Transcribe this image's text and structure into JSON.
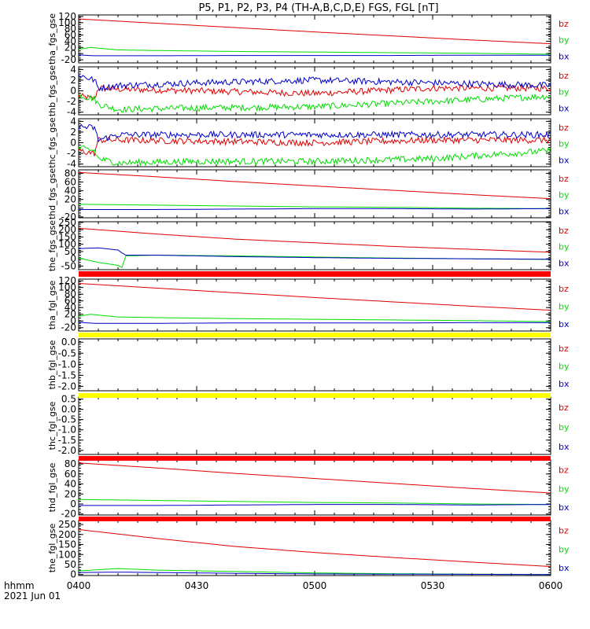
{
  "page": {
    "title": "P5, P1, P2, P3, P4 (TH-A,B,C,D,E) FGS, FGL [nT]"
  },
  "footer": {
    "time_format": "hhmm",
    "date": "2021 Jun 01"
  },
  "x_axis": {
    "range_minutes": [
      0,
      120
    ],
    "tick_minutes": [
      0,
      30,
      60,
      90,
      120
    ],
    "tick_labels": [
      "0400",
      "0430",
      "0500",
      "0530",
      "0600"
    ]
  },
  "colors": {
    "bz": "#e00000",
    "by": "#00dd00",
    "bx": "#0000c8",
    "flag_red": "#ff0000",
    "flag_yellow": "#ffff00"
  },
  "chart_data": [
    {
      "type": "line",
      "ylabel": "tha_fgs_gse",
      "ylim": [
        -30,
        125
      ],
      "ytick_values": [
        -20,
        0,
        20,
        40,
        60,
        80,
        100,
        120
      ],
      "ytick_labels": [
        "-20",
        "0",
        "20",
        "40",
        "60",
        "80",
        "100",
        "120"
      ],
      "legend": [
        "bz",
        "by",
        "bx"
      ],
      "series": [
        {
          "name": "bz",
          "x": [
            0,
            20,
            40,
            60,
            80,
            100,
            120
          ],
          "y": [
            112,
            98,
            84,
            70,
            57,
            44,
            32
          ]
        },
        {
          "name": "by",
          "x": [
            0,
            3,
            10,
            20,
            40,
            60,
            80,
            100,
            120
          ],
          "y": [
            14,
            20,
            12,
            10,
            7,
            5,
            3,
            1,
            -2
          ]
        },
        {
          "name": "bx",
          "x": [
            0,
            4,
            20,
            40,
            60,
            80,
            100,
            120
          ],
          "y": [
            -4,
            -7,
            -7,
            -6,
            -6,
            -6,
            -5,
            -5
          ]
        }
      ]
    },
    {
      "type": "line",
      "ylabel": "thb_fgs_gse",
      "ylim": [
        -4.5,
        4.5
      ],
      "ytick_values": [
        -4,
        -2,
        0,
        2,
        4
      ],
      "ytick_labels": [
        "-4",
        "-2",
        "0",
        "2",
        "4"
      ],
      "legend": [
        "bz",
        "by",
        "bx"
      ],
      "series": [
        {
          "name": "bz",
          "x": [
            0,
            4,
            5,
            10,
            30,
            60,
            90,
            120
          ],
          "y": [
            -1,
            -1.5,
            0.5,
            0.3,
            0,
            -0.5,
            0.5,
            0.5
          ]
        },
        {
          "name": "by",
          "x": [
            0,
            4,
            5,
            10,
            30,
            60,
            90,
            120
          ],
          "y": [
            -0.8,
            -1.5,
            -2.5,
            -3.5,
            -3.2,
            -3,
            -2,
            -1
          ]
        },
        {
          "name": "bx",
          "x": [
            0,
            4,
            5,
            10,
            30,
            60,
            90,
            120
          ],
          "y": [
            3,
            2,
            0.5,
            1,
            1.5,
            2,
            1.5,
            1
          ]
        }
      ]
    },
    {
      "type": "line",
      "ylabel": "thc_fgs_gse",
      "ylim": [
        -4.5,
        4.5
      ],
      "ytick_values": [
        -4,
        -2,
        0,
        2,
        4
      ],
      "ytick_labels": [
        "-4",
        "-2",
        "0",
        "2",
        "4"
      ],
      "legend": [
        "bz",
        "by",
        "bx"
      ],
      "series": [
        {
          "name": "bz",
          "x": [
            0,
            4,
            5,
            10,
            30,
            60,
            90,
            120
          ],
          "y": [
            -1.5,
            -2,
            0.5,
            0.5,
            0.3,
            0,
            0.5,
            0.5
          ]
        },
        {
          "name": "by",
          "x": [
            0,
            4,
            5,
            10,
            30,
            60,
            90,
            120
          ],
          "y": [
            -1,
            -1.5,
            -3,
            -3.8,
            -3.5,
            -3.5,
            -3,
            -1.5
          ]
        },
        {
          "name": "bx",
          "x": [
            0,
            4,
            5,
            10,
            30,
            60,
            90,
            120
          ],
          "y": [
            3,
            2.8,
            0.5,
            1.5,
            1.5,
            1.5,
            1.5,
            1.5
          ]
        }
      ]
    },
    {
      "type": "line",
      "ylabel": "thd_fgs_gse",
      "ylim": [
        -22,
        88
      ],
      "ytick_values": [
        -20,
        0,
        20,
        40,
        60,
        80
      ],
      "ytick_labels": [
        "-20",
        "0",
        "20",
        "40",
        "60",
        "80"
      ],
      "legend": [
        "bz",
        "by",
        "bx"
      ],
      "series": [
        {
          "name": "bz",
          "x": [
            0,
            20,
            40,
            60,
            80,
            100,
            120
          ],
          "y": [
            82,
            72,
            61,
            51,
            41,
            31,
            22
          ]
        },
        {
          "name": "by",
          "x": [
            0,
            20,
            40,
            60,
            80,
            100,
            120
          ],
          "y": [
            9,
            7,
            5,
            3,
            2,
            0,
            -1
          ]
        },
        {
          "name": "bx",
          "x": [
            0,
            20,
            40,
            60,
            80,
            100,
            120
          ],
          "y": [
            -3,
            -3,
            -2,
            -1,
            -1,
            -2,
            -1
          ]
        }
      ]
    },
    {
      "type": "line",
      "ylabel": "the_fgs_gse",
      "ylim": [
        -75,
        255
      ],
      "ytick_values": [
        -50,
        0,
        50,
        100,
        150,
        200,
        250
      ],
      "ytick_labels": [
        "-50",
        "0",
        "50",
        "100",
        "150",
        "200",
        "250"
      ],
      "legend": [
        "bz",
        "by",
        "bx"
      ],
      "series": [
        {
          "name": "bz",
          "x": [
            0,
            20,
            40,
            60,
            80,
            100,
            120
          ],
          "y": [
            210,
            170,
            135,
            110,
            85,
            65,
            45
          ]
        },
        {
          "name": "by",
          "x": [
            0,
            5,
            10,
            11,
            12,
            20,
            40,
            60,
            80,
            100,
            120
          ],
          "y": [
            5,
            -25,
            -45,
            -60,
            20,
            25,
            20,
            12,
            5,
            0,
            -5
          ]
        },
        {
          "name": "bx",
          "x": [
            0,
            5,
            10,
            11,
            12,
            20,
            40,
            60,
            80,
            100,
            120
          ],
          "y": [
            70,
            75,
            60,
            40,
            25,
            25,
            15,
            8,
            3,
            0,
            -3
          ]
        }
      ]
    },
    {
      "type": "line",
      "ylabel": "tha_fgl_gse",
      "ylim": [
        -30,
        125
      ],
      "ytick_values": [
        -20,
        0,
        20,
        40,
        60,
        80,
        100,
        120
      ],
      "ytick_labels": [
        "-20",
        "0",
        "20",
        "40",
        "60",
        "80",
        "100",
        "120"
      ],
      "legend": [
        "bz",
        "by",
        "bx"
      ],
      "series": [
        {
          "name": "bz",
          "x": [
            0,
            20,
            40,
            60,
            80,
            100,
            120
          ],
          "y": [
            112,
            98,
            84,
            70,
            57,
            44,
            32
          ]
        },
        {
          "name": "by",
          "x": [
            0,
            3,
            10,
            20,
            40,
            60,
            80,
            100,
            120
          ],
          "y": [
            14,
            20,
            12,
            10,
            7,
            5,
            3,
            1,
            -2
          ]
        },
        {
          "name": "bx",
          "x": [
            0,
            4,
            20,
            40,
            60,
            80,
            100,
            120
          ],
          "y": [
            -4,
            -7,
            -7,
            -6,
            -6,
            -6,
            -5,
            -5
          ]
        }
      ]
    },
    {
      "type": "line",
      "ylabel": "thb_fgl_gse",
      "ylim": [
        -2.2,
        0.15
      ],
      "ytick_values": [
        -2.0,
        -1.5,
        -1.0,
        -0.5,
        0.0
      ],
      "ytick_labels": [
        "-2.0",
        "-1.5",
        "-1.0",
        "-0.5",
        "0.0"
      ],
      "legend": [
        "bz",
        "by",
        "bx"
      ],
      "series": []
    },
    {
      "type": "line",
      "ylabel": "thc_fgl_gse",
      "ylim": [
        -2.2,
        0.6
      ],
      "ytick_values": [
        -2.0,
        -1.5,
        -1.0,
        -0.5,
        0.0,
        0.5
      ],
      "ytick_labels": [
        "-2.0",
        "-1.5",
        "-1.0",
        "-0.5",
        "0.0",
        "0.5"
      ],
      "legend": [
        "bz",
        "by",
        "bx"
      ],
      "series": []
    },
    {
      "type": "line",
      "ylabel": "thd_fgl_gse",
      "ylim": [
        -22,
        88
      ],
      "ytick_values": [
        -20,
        0,
        20,
        40,
        60,
        80
      ],
      "ytick_labels": [
        "-20",
        "0",
        "20",
        "40",
        "60",
        "80"
      ],
      "legend": [
        "bz",
        "by",
        "bx"
      ],
      "series": [
        {
          "name": "bz",
          "x": [
            0,
            20,
            40,
            60,
            80,
            100,
            120
          ],
          "y": [
            82,
            72,
            61,
            51,
            41,
            31,
            22
          ]
        },
        {
          "name": "by",
          "x": [
            0,
            20,
            40,
            60,
            80,
            100,
            120
          ],
          "y": [
            9,
            7,
            5,
            3,
            2,
            0,
            -1
          ]
        },
        {
          "name": "bx",
          "x": [
            0,
            20,
            40,
            60,
            80,
            100,
            120
          ],
          "y": [
            -3,
            -3,
            -2,
            -1,
            -1,
            -2,
            -1
          ]
        }
      ]
    },
    {
      "type": "line",
      "ylabel": "the_fgl_gse",
      "ylim": [
        -5,
        270
      ],
      "ytick_values": [
        0,
        50,
        100,
        150,
        200,
        250
      ],
      "ytick_labels": [
        "0",
        "50",
        "100",
        "150",
        "200",
        "250"
      ],
      "legend": [
        "bz",
        "by",
        "bx"
      ],
      "series": [
        {
          "name": "bz",
          "x": [
            0,
            20,
            40,
            60,
            80,
            100,
            120
          ],
          "y": [
            225,
            180,
            140,
            110,
            85,
            62,
            40
          ]
        },
        {
          "name": "by",
          "x": [
            0,
            10,
            20,
            40,
            60,
            80,
            100,
            120
          ],
          "y": [
            18,
            30,
            22,
            15,
            8,
            4,
            2,
            0
          ]
        },
        {
          "name": "bx",
          "x": [
            0,
            10,
            20,
            40,
            60,
            80,
            100,
            120
          ],
          "y": [
            10,
            12,
            10,
            6,
            3,
            2,
            1,
            0
          ]
        }
      ]
    }
  ]
}
